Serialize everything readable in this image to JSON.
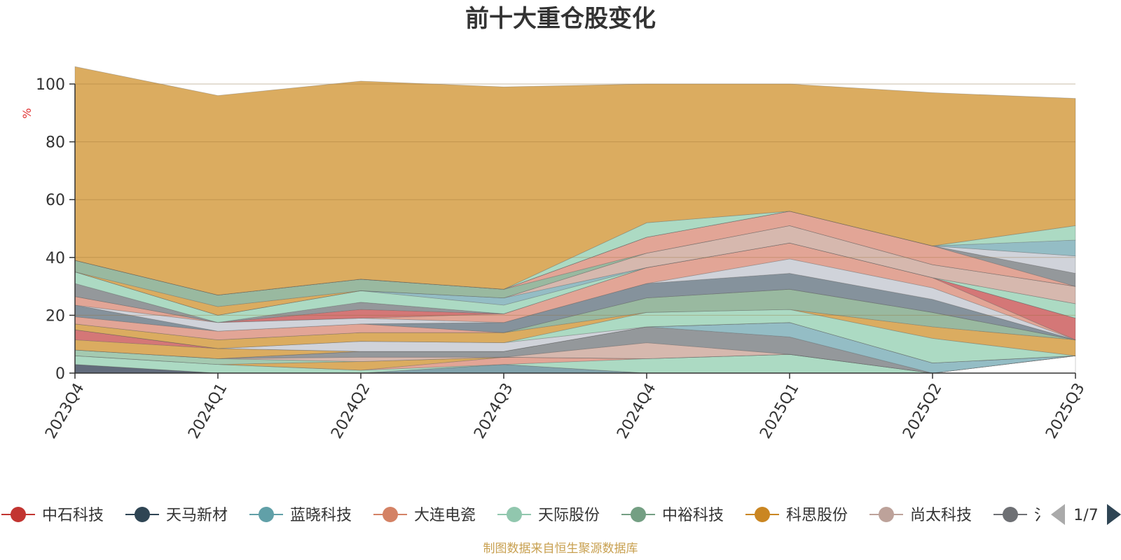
{
  "chart_data": {
    "type": "area",
    "stacked": true,
    "title": "前十大重仓股变化",
    "ylabel": "%",
    "xlabel": "",
    "ylim": [
      0,
      100
    ],
    "yticks": [
      "0",
      "20",
      "40",
      "60",
      "80",
      "100"
    ],
    "categories": [
      "2023Q4",
      "2024Q1",
      "2024Q2",
      "2024Q3",
      "2024Q4",
      "2025Q1",
      "2025Q2",
      "2025Q3"
    ],
    "series": [
      {
        "name": "",
        "color": "#5a6475",
        "values": [
          3.0,
          0.0,
          0.0,
          0.0,
          0.0,
          0.0,
          0.0,
          0.0
        ]
      },
      {
        "name": "",
        "color": "#7a9ea8",
        "values": [
          0.0,
          0.0,
          0.0,
          3.0,
          0.0,
          0.0,
          0.0,
          0.0
        ]
      },
      {
        "name": "",
        "color": "#ffffff",
        "values": [
          0.0,
          0.0,
          0.0,
          0.0,
          0.0,
          0.0,
          0.0,
          6.0
        ]
      },
      {
        "name": "",
        "color": "#a8d8c0",
        "values": [
          3.0,
          3.0,
          1.0,
          0.0,
          5.0,
          6.5,
          0.0,
          0.0
        ]
      },
      {
        "name": "",
        "color": "#e0a090",
        "values": [
          0.0,
          0.0,
          0.0,
          2.5,
          0.0,
          0.0,
          0.0,
          0.0
        ]
      },
      {
        "name": "",
        "color": "#d9a857",
        "values": [
          0.0,
          0.0,
          3.0,
          0.0,
          0.0,
          0.0,
          0.0,
          0.0
        ]
      },
      {
        "name": "",
        "color": "#9fc7ad",
        "values": [
          2.0,
          2.0,
          0.0,
          0.0,
          0.0,
          0.0,
          0.0,
          0.0
        ]
      },
      {
        "name": "",
        "color": "#d4b4aa",
        "values": [
          0.0,
          0.0,
          1.5,
          0.0,
          5.5,
          0.0,
          0.0,
          0.0
        ]
      },
      {
        "name": "",
        "color": "#8e9296",
        "values": [
          0.0,
          0.0,
          2.0,
          2.0,
          5.5,
          6.0,
          0.0,
          0.0
        ]
      },
      {
        "name": "",
        "color": "#8eb9c2",
        "values": [
          0.0,
          0.0,
          0.0,
          0.0,
          0.0,
          5.0,
          3.5,
          0.0
        ]
      },
      {
        "name": "",
        "color": "#d9a857",
        "values": [
          3.5,
          3.5,
          0.0,
          0.0,
          0.0,
          0.0,
          0.0,
          0.0
        ]
      },
      {
        "name": "",
        "color": "#d27070",
        "values": [
          3.5,
          0.0,
          0.0,
          0.0,
          0.0,
          0.0,
          0.0,
          0.0
        ]
      },
      {
        "name": "",
        "color": "#cdd1d8",
        "values": [
          0.0,
          0.0,
          3.5,
          3.0,
          0.0,
          0.0,
          0.0,
          0.0
        ]
      },
      {
        "name": "",
        "color": "#a8d8c0",
        "values": [
          0.0,
          0.0,
          0.0,
          0.0,
          5.0,
          4.5,
          8.5,
          0.0
        ]
      },
      {
        "name": "",
        "color": "#d9a857",
        "values": [
          2.0,
          3.0,
          3.0,
          3.5,
          0.0,
          0.0,
          4.0,
          5.5
        ]
      },
      {
        "name": "",
        "color": "#93b59b",
        "values": [
          0.0,
          0.0,
          0.0,
          0.0,
          5.0,
          7.0,
          5.0,
          0.0
        ]
      },
      {
        "name": "",
        "color": "#e0a090",
        "values": [
          2.5,
          3.0,
          3.0,
          0.0,
          0.0,
          0.0,
          0.0,
          0.0
        ]
      },
      {
        "name": "",
        "color": "#7e8c97",
        "values": [
          4.0,
          0.0,
          0.0,
          3.5,
          5.0,
          5.5,
          4.5,
          0.0
        ]
      },
      {
        "name": "",
        "color": "#cdd1d8",
        "values": [
          0.0,
          3.0,
          2.0,
          0.0,
          0.0,
          5.0,
          4.0,
          0.0
        ]
      },
      {
        "name": "",
        "color": "#e0a090",
        "values": [
          3.0,
          0.0,
          0.0,
          3.0,
          5.5,
          5.5,
          3.5,
          0.0
        ]
      },
      {
        "name": "",
        "color": "#d27070",
        "values": [
          0.0,
          0.0,
          3.0,
          0.0,
          0.0,
          0.0,
          0.0,
          7.5
        ]
      },
      {
        "name": "",
        "color": "#8e9296",
        "values": [
          4.5,
          0.0,
          2.5,
          0.0,
          0.0,
          0.0,
          0.0,
          0.0
        ]
      },
      {
        "name": "",
        "color": "#a8d8c0",
        "values": [
          4.0,
          2.5,
          4.0,
          3.0,
          0.0,
          0.0,
          0.0,
          5.0
        ]
      },
      {
        "name": "",
        "color": "#8eb9c2",
        "values": [
          0.0,
          0.0,
          0.0,
          2.5,
          0.0,
          0.0,
          0.0,
          0.0
        ]
      },
      {
        "name": "",
        "color": "#d4b4aa",
        "values": [
          0.0,
          0.0,
          0.0,
          0.0,
          5.0,
          6.0,
          4.5,
          6.0
        ]
      },
      {
        "name": "",
        "color": "#d9a857",
        "values": [
          0.0,
          3.0,
          0.0,
          0.0,
          0.0,
          0.0,
          0.0,
          0.0
        ]
      },
      {
        "name": "",
        "color": "#93b59b",
        "values": [
          4.0,
          4.0,
          4.0,
          3.0,
          0.0,
          0.0,
          0.0,
          0.0
        ]
      },
      {
        "name": "",
        "color": "#e0a090",
        "values": [
          0.0,
          0.0,
          0.0,
          0.0,
          5.5,
          5.0,
          6.5,
          0.0
        ]
      },
      {
        "name": "",
        "color": "#8e9296",
        "values": [
          0.0,
          0.0,
          0.0,
          0.0,
          0.0,
          0.0,
          0.0,
          4.5
        ]
      },
      {
        "name": "",
        "color": "#cdd1d8",
        "values": [
          0.0,
          0.0,
          0.0,
          0.0,
          0.0,
          0.0,
          0.0,
          6.0
        ]
      },
      {
        "name": "",
        "color": "#8eb9c2",
        "values": [
          0.0,
          0.0,
          0.0,
          0.0,
          0.0,
          0.0,
          0.0,
          5.5
        ]
      },
      {
        "name": "",
        "color": "#a8d8c0",
        "values": [
          0.0,
          0.0,
          0.0,
          0.0,
          5.0,
          0.0,
          0.0,
          5.0
        ]
      },
      {
        "name": "",
        "color": "#d9a857",
        "values": [
          67.0,
          69.0,
          68.5,
          70.0,
          48.0,
          44.0,
          53.0,
          44.0
        ]
      }
    ],
    "legend": [
      {
        "name": "中石科技",
        "color": "#c23531"
      },
      {
        "name": "天马新材",
        "color": "#2f4554"
      },
      {
        "name": "蓝晓科技",
        "color": "#61a0a8"
      },
      {
        "name": "大连电瓷",
        "color": "#d48265"
      },
      {
        "name": "天际股份",
        "color": "#91c7ae"
      },
      {
        "name": "中裕科技",
        "color": "#749f83"
      },
      {
        "name": "科思股份",
        "color": "#ca8622"
      },
      {
        "name": "尚太科技",
        "color": "#bda29a"
      },
      {
        "name": "",
        "color": "#6e7074"
      }
    ],
    "legend_truncated_glyph": "氵",
    "legend_page": "1/7",
    "source": "制图数据来自恒生聚源数据库",
    "legend_position": "bottom"
  }
}
